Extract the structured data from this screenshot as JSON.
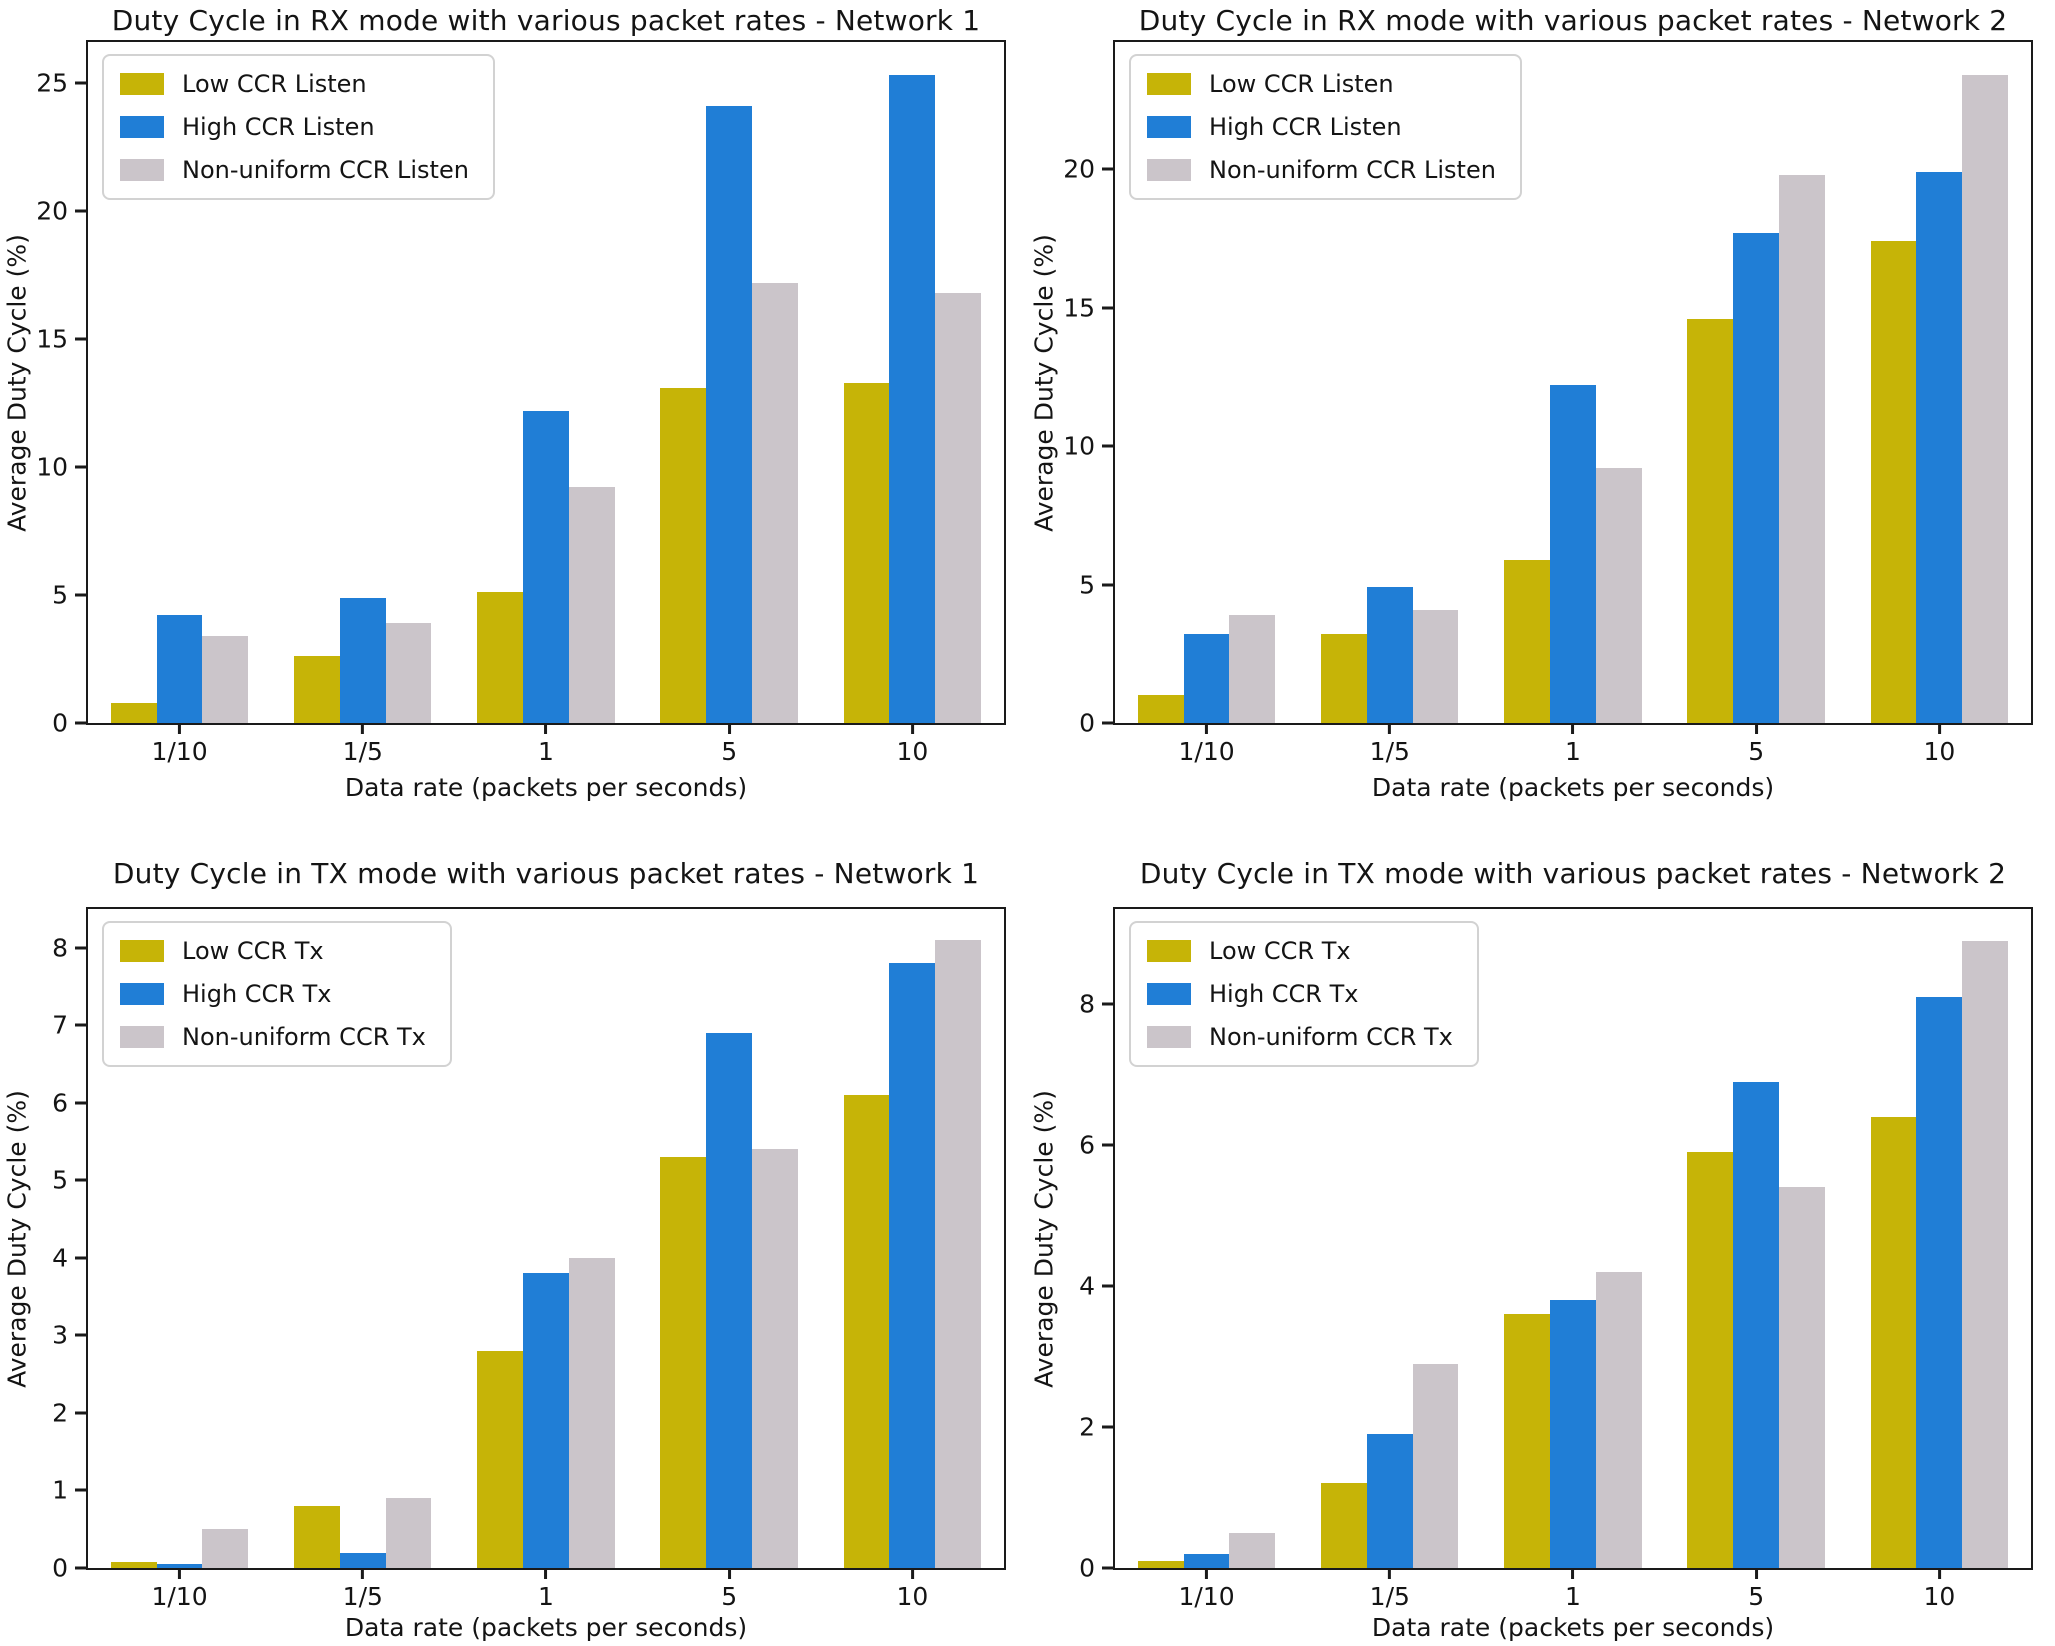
{
  "figure": {
    "background": "#ffffff",
    "axis_color": "#1a1a1a"
  },
  "colors": {
    "low_ccr": "#c6b407",
    "high_ccr": "#207ed6",
    "non_uniform_ccr": "#cbc5ca"
  },
  "chart_data": [
    {
      "type": "bar",
      "title": "Duty Cycle in RX mode with various packet rates - Network 1",
      "xlabel": "Data rate (packets per seconds)",
      "ylabel": "Average Duty Cycle (%)",
      "categories": [
        "1/10",
        "1/5",
        "1",
        "5",
        "10"
      ],
      "series": [
        {
          "name": "Low CCR Listen",
          "color": "#c6b407",
          "values": [
            0.8,
            2.6,
            5.1,
            13.1,
            13.3
          ]
        },
        {
          "name": "High CCR Listen",
          "color": "#207ed6",
          "values": [
            4.2,
            4.9,
            12.2,
            24.1,
            25.3
          ]
        },
        {
          "name": "Non-uniform CCR Listen",
          "color": "#cbc5ca",
          "values": [
            3.4,
            3.9,
            9.2,
            17.2,
            16.8
          ]
        }
      ],
      "yticks": [
        0,
        5,
        10,
        15,
        20,
        25
      ],
      "ylim": [
        0,
        26.6
      ],
      "grid": false,
      "legend_position": "upper left"
    },
    {
      "type": "bar",
      "title": "Duty Cycle in RX mode with various packet rates - Network 2",
      "xlabel": "Data rate (packets per seconds)",
      "ylabel": "Average Duty Cycle (%)",
      "categories": [
        "1/10",
        "1/5",
        "1",
        "5",
        "10"
      ],
      "series": [
        {
          "name": "Low CCR Listen",
          "color": "#c6b407",
          "values": [
            1.0,
            3.2,
            5.9,
            14.6,
            17.4
          ]
        },
        {
          "name": "High CCR Listen",
          "color": "#207ed6",
          "values": [
            3.2,
            4.9,
            12.2,
            17.7,
            19.9
          ]
        },
        {
          "name": "Non-uniform CCR Listen",
          "color": "#cbc5ca",
          "values": [
            3.9,
            4.1,
            9.2,
            19.8,
            23.4
          ]
        }
      ],
      "yticks": [
        0,
        5,
        10,
        15,
        20
      ],
      "ylim": [
        0,
        24.6
      ],
      "grid": false,
      "legend_position": "upper left"
    },
    {
      "type": "bar",
      "title": "Duty Cycle in TX mode with various packet rates - Network 1",
      "xlabel": "Data rate (packets per seconds)",
      "ylabel": "Average Duty Cycle (%)",
      "categories": [
        "1/10",
        "1/5",
        "1",
        "5",
        "10"
      ],
      "series": [
        {
          "name": "Low CCR Tx",
          "color": "#c6b407",
          "values": [
            0.08,
            0.8,
            2.8,
            5.3,
            6.1
          ]
        },
        {
          "name": "High CCR Tx",
          "color": "#207ed6",
          "values": [
            0.05,
            0.2,
            3.8,
            6.9,
            7.8
          ]
        },
        {
          "name": "Non-uniform CCR Tx",
          "color": "#cbc5ca",
          "values": [
            0.5,
            0.9,
            4.0,
            5.4,
            8.1
          ]
        }
      ],
      "yticks": [
        0,
        1,
        2,
        3,
        4,
        5,
        6,
        7,
        8
      ],
      "ylim": [
        0,
        8.5
      ],
      "grid": false,
      "legend_position": "upper left"
    },
    {
      "type": "bar",
      "title": "Duty Cycle in TX mode with various packet rates - Network 2",
      "xlabel": "Data rate (packets per seconds)",
      "ylabel": "Average Duty Cycle (%)",
      "categories": [
        "1/10",
        "1/5",
        "1",
        "5",
        "10"
      ],
      "series": [
        {
          "name": "Low CCR Tx",
          "color": "#c6b407",
          "values": [
            0.1,
            1.2,
            3.6,
            5.9,
            6.4
          ]
        },
        {
          "name": "High CCR Tx",
          "color": "#207ed6",
          "values": [
            0.2,
            1.9,
            3.8,
            6.9,
            8.1
          ]
        },
        {
          "name": "Non-uniform CCR Tx",
          "color": "#cbc5ca",
          "values": [
            0.5,
            2.9,
            4.2,
            5.4,
            8.9
          ]
        }
      ],
      "yticks": [
        0,
        2,
        4,
        6,
        8
      ],
      "ylim": [
        0,
        9.35
      ],
      "grid": false,
      "legend_position": "upper left"
    }
  ]
}
